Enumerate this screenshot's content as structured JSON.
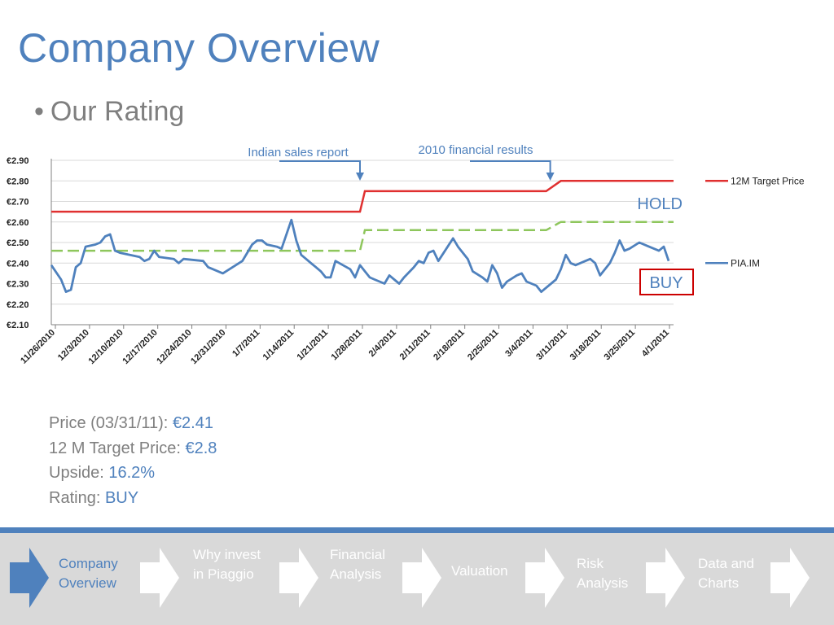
{
  "slide": {
    "title": "Company Overview",
    "bullet": "Our Rating"
  },
  "colors": {
    "accent": "#4f81bd",
    "target_line": "#e03030",
    "dashed_line": "#8ec65c",
    "price_line": "#4f81bd",
    "rating_box": "#cc0000",
    "nav_bg": "#d9d9d9"
  },
  "chart_data": {
    "type": "line",
    "x_tick_labels": [
      "11/26/2010",
      "12/3/2010",
      "12/10/2010",
      "12/17/2010",
      "12/24/2010",
      "12/31/2010",
      "1/7/2011",
      "1/14/2011",
      "1/21/2011",
      "1/28/2011",
      "2/4/2011",
      "2/11/2011",
      "2/18/2011",
      "2/25/2011",
      "3/4/2011",
      "3/11/2011",
      "3/18/2011",
      "3/25/2011",
      "4/1/2011"
    ],
    "y_tick_labels": [
      "€2.90",
      "€2.80",
      "€2.70",
      "€2.60",
      "€2.50",
      "€2.40",
      "€2.30",
      "€2.20",
      "€2.10"
    ],
    "ylim": [
      2.1,
      2.9
    ],
    "xlim": [
      0,
      127
    ],
    "series": [
      {
        "name": "12M Target Price",
        "values": [
          [
            0,
            2.65
          ],
          [
            63,
            2.65
          ],
          [
            64,
            2.75
          ],
          [
            101,
            2.75
          ],
          [
            104,
            2.8
          ],
          [
            127,
            2.8
          ]
        ]
      },
      {
        "name": "",
        "values": [
          [
            0,
            2.46
          ],
          [
            63,
            2.46
          ],
          [
            64,
            2.56
          ],
          [
            101,
            2.56
          ],
          [
            104,
            2.6
          ],
          [
            127,
            2.6
          ]
        ]
      },
      {
        "name": "PIA.IM",
        "values": [
          [
            0,
            2.39
          ],
          [
            2,
            2.32
          ],
          [
            3,
            2.26
          ],
          [
            4,
            2.27
          ],
          [
            5,
            2.38
          ],
          [
            6,
            2.4
          ],
          [
            7,
            2.48
          ],
          [
            9,
            2.49
          ],
          [
            10,
            2.5
          ],
          [
            11,
            2.53
          ],
          [
            12,
            2.54
          ],
          [
            13,
            2.46
          ],
          [
            14,
            2.45
          ],
          [
            18,
            2.43
          ],
          [
            19,
            2.41
          ],
          [
            20,
            2.42
          ],
          [
            21,
            2.46
          ],
          [
            22,
            2.43
          ],
          [
            25,
            2.42
          ],
          [
            26,
            2.4
          ],
          [
            27,
            2.42
          ],
          [
            31,
            2.41
          ],
          [
            32,
            2.38
          ],
          [
            33,
            2.37
          ],
          [
            35,
            2.35
          ],
          [
            39,
            2.41
          ],
          [
            40,
            2.45
          ],
          [
            41,
            2.49
          ],
          [
            42,
            2.51
          ],
          [
            43,
            2.51
          ],
          [
            44,
            2.49
          ],
          [
            46,
            2.48
          ],
          [
            47,
            2.47
          ],
          [
            49,
            2.61
          ],
          [
            50,
            2.51
          ],
          [
            51,
            2.44
          ],
          [
            52,
            2.42
          ],
          [
            53,
            2.4
          ],
          [
            54,
            2.38
          ],
          [
            55,
            2.36
          ],
          [
            56,
            2.33
          ],
          [
            57,
            2.33
          ],
          [
            58,
            2.41
          ],
          [
            61,
            2.37
          ],
          [
            62,
            2.33
          ],
          [
            63,
            2.39
          ],
          [
            64,
            2.36
          ],
          [
            65,
            2.33
          ],
          [
            66,
            2.32
          ],
          [
            68,
            2.3
          ],
          [
            69,
            2.34
          ],
          [
            70,
            2.32
          ],
          [
            71,
            2.3
          ],
          [
            72,
            2.33
          ],
          [
            74,
            2.38
          ],
          [
            75,
            2.41
          ],
          [
            76,
            2.4
          ],
          [
            77,
            2.45
          ],
          [
            78,
            2.46
          ],
          [
            79,
            2.41
          ],
          [
            82,
            2.52
          ],
          [
            83,
            2.48
          ],
          [
            85,
            2.42
          ],
          [
            86,
            2.36
          ],
          [
            88,
            2.33
          ],
          [
            89,
            2.31
          ],
          [
            90,
            2.39
          ],
          [
            91,
            2.35
          ],
          [
            92,
            2.28
          ],
          [
            93,
            2.31
          ],
          [
            95,
            2.34
          ],
          [
            96,
            2.35
          ],
          [
            97,
            2.31
          ],
          [
            99,
            2.29
          ],
          [
            100,
            2.26
          ],
          [
            103,
            2.32
          ],
          [
            104,
            2.37
          ],
          [
            105,
            2.44
          ],
          [
            106,
            2.4
          ],
          [
            107,
            2.39
          ],
          [
            109,
            2.41
          ],
          [
            110,
            2.42
          ],
          [
            111,
            2.4
          ],
          [
            112,
            2.34
          ],
          [
            114,
            2.4
          ],
          [
            115,
            2.45
          ],
          [
            116,
            2.51
          ],
          [
            117,
            2.46
          ],
          [
            118,
            2.47
          ],
          [
            120,
            2.5
          ],
          [
            122,
            2.48
          ],
          [
            124,
            2.46
          ],
          [
            125,
            2.48
          ],
          [
            126,
            2.41
          ]
        ]
      }
    ],
    "annotations": [
      {
        "text": "Indian sales report",
        "at_x": 63
      },
      {
        "text": "2010 financial results",
        "at_x": 102
      }
    ],
    "ratings": [
      {
        "text": "HOLD",
        "boxed": false
      },
      {
        "text": "BUY",
        "boxed": true
      }
    ],
    "legend_placement": "right",
    "grid": "horizontal"
  },
  "metrics": {
    "price_label": "Price (03/31/11):",
    "price_value": "€2.41",
    "target_label": "12 M Target Price:",
    "target_value": "€2.8",
    "upside_label": "Upside:",
    "upside_value": "16.2%",
    "rating_label": "Rating:",
    "rating_value": "BUY"
  },
  "nav": [
    {
      "label_1": "Company",
      "label_2": "Overview",
      "active": true
    },
    {
      "label_1": "Why invest",
      "label_2": "in Piaggio",
      "active": false
    },
    {
      "label_1": "Financial",
      "label_2": "Analysis",
      "active": false
    },
    {
      "label_1": "Valuation",
      "label_2": "",
      "active": false
    },
    {
      "label_1": "Risk",
      "label_2": "Analysis",
      "active": false
    },
    {
      "label_1": "Data and",
      "label_2": "Charts",
      "active": false
    }
  ]
}
